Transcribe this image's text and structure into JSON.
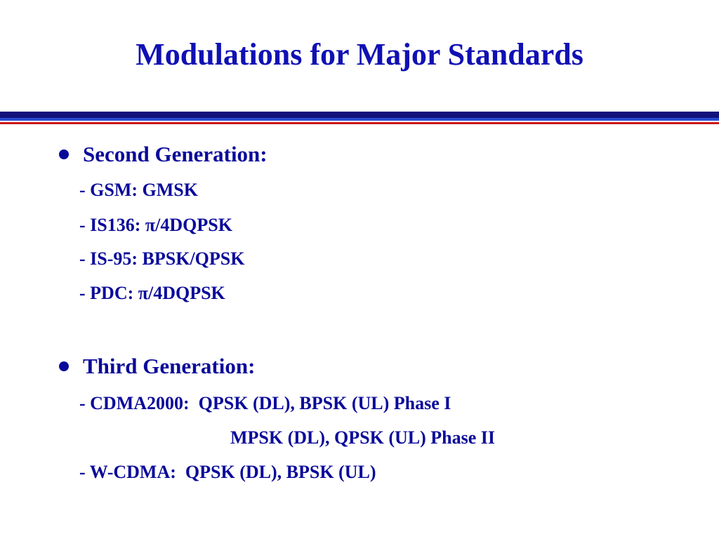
{
  "slide": {
    "title": "Modulations for Major Standards",
    "sections": [
      {
        "heading": "Second Generation:",
        "items": [
          "- GSM: GMSK",
          "- IS136: π/4DQPSK",
          "- IS-95: BPSK/QPSK",
          "- PDC: π/4DQPSK"
        ]
      },
      {
        "heading": "Third Generation:",
        "items": [
          "- CDMA2000:  QPSK (DL), BPSK (UL) Phase I",
          "MPSK (DL), QPSK (UL) Phase II",
          "- W-CDMA:  QPSK (DL), BPSK (UL)"
        ]
      }
    ]
  },
  "colors": {
    "text": "#0a0a9a",
    "title": "#1010b4",
    "rule_navy": "#12127a",
    "rule_blue": "#2a4ad0",
    "rule_red": "#c81818"
  }
}
